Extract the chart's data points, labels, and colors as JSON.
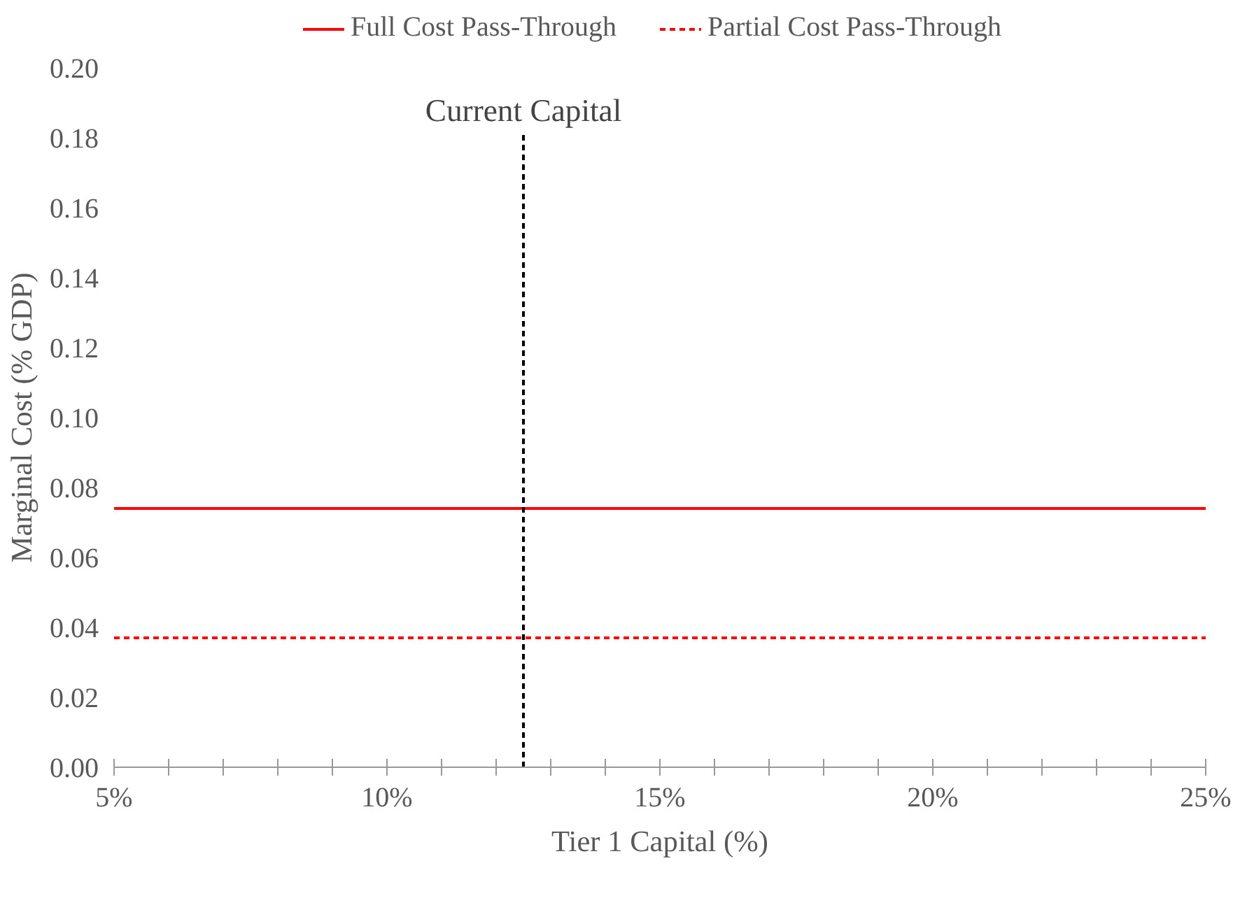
{
  "chart_data": {
    "type": "line",
    "xlabel": "Tier 1 Capital (%)",
    "ylabel": "Marginal Cost (% GDP)",
    "x": [
      5,
      25
    ],
    "series": [
      {
        "name": "Full Cost Pass-Through",
        "color": "#ff0000",
        "values": [
          0.074,
          0.074
        ],
        "line_style": "solid"
      },
      {
        "name": "Partial Cost Pass-Through",
        "color": "#ff0000",
        "values": [
          0.037,
          0.037
        ],
        "line_style": "dashed"
      }
    ],
    "xlim": [
      5,
      25
    ],
    "xticks": [
      {
        "value": 5,
        "label": "5%"
      },
      {
        "value": 6,
        "label": null
      },
      {
        "value": 7,
        "label": null
      },
      {
        "value": 8,
        "label": null
      },
      {
        "value": 9,
        "label": null
      },
      {
        "value": 10,
        "label": "10%"
      },
      {
        "value": 11,
        "label": null
      },
      {
        "value": 12,
        "label": null
      },
      {
        "value": 13,
        "label": null
      },
      {
        "value": 14,
        "label": null
      },
      {
        "value": 15,
        "label": "15%"
      },
      {
        "value": 16,
        "label": null
      },
      {
        "value": 17,
        "label": null
      },
      {
        "value": 18,
        "label": null
      },
      {
        "value": 19,
        "label": null
      },
      {
        "value": 20,
        "label": "20%"
      },
      {
        "value": 21,
        "label": null
      },
      {
        "value": 22,
        "label": null
      },
      {
        "value": 23,
        "label": null
      },
      {
        "value": 24,
        "label": null
      },
      {
        "value": 25,
        "label": "25%"
      }
    ],
    "ylim": [
      0,
      0.2
    ],
    "yticks": [
      {
        "value": 0,
        "label": "0.00"
      },
      {
        "value": 0.02,
        "label": "0.02"
      },
      {
        "value": 0.04,
        "label": "0.04"
      },
      {
        "value": 0.06,
        "label": "0.06"
      },
      {
        "value": 0.08,
        "label": "0.08"
      },
      {
        "value": 0.1,
        "label": "0.10"
      },
      {
        "value": 0.12,
        "label": "0.12"
      },
      {
        "value": 0.14,
        "label": "0.14"
      },
      {
        "value": 0.16,
        "label": "0.16"
      },
      {
        "value": 0.18,
        "label": "0.18"
      },
      {
        "value": 0.2,
        "label": "0.20"
      }
    ],
    "ref_lines": [
      {
        "axis": "x",
        "value": 12.5,
        "label": "Current Capital",
        "color": "#000000",
        "line_style": "dashed"
      }
    ],
    "grid": false,
    "legend": "top",
    "marker": "none"
  }
}
